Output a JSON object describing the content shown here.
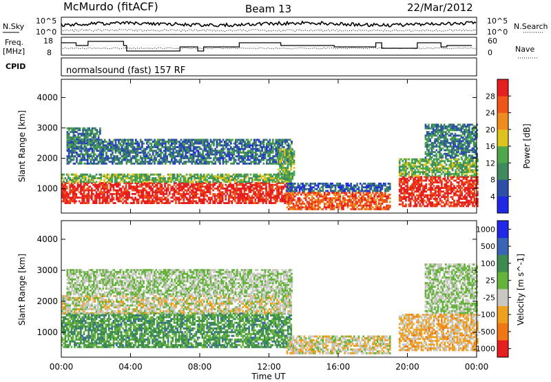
{
  "header": {
    "title": "McMurdo (fitACF)",
    "beam": "Beam 13",
    "date": "22/Mar/2012"
  },
  "noise_panel": {
    "left_label": "N.Sky",
    "right_label": "N.Search",
    "left_ticks": [
      "10^5",
      "10^0"
    ],
    "right_ticks": [
      "10^5",
      "10^0"
    ]
  },
  "freq_panel": {
    "left_label_1": "Freq.",
    "left_label_2": "[MHz]",
    "left_ticks": [
      "18",
      "8"
    ],
    "right_label": "Nave",
    "right_ticks": [
      "60",
      "0"
    ]
  },
  "cpid": {
    "label": "CPID",
    "value": "normalsound (fast) 157 RF"
  },
  "colors": {
    "power_scale": [
      "#1e28e6",
      "#2c4fa8",
      "#3d8a5c",
      "#4ca84a",
      "#e0c21c",
      "#f08c1e",
      "#ef5418",
      "#e61e1e"
    ],
    "velocity_scale": [
      "#1e28e6",
      "#3c64b4",
      "#3c8c50",
      "#64b43c",
      "#c8c8c0",
      "#f0a01e",
      "#f07814",
      "#e61e1e"
    ],
    "ground_scatter": "#b4b4b4"
  },
  "chart_data": [
    {
      "type": "heatmap",
      "name": "power",
      "ylabel": "Slant Range [km]",
      "xlabel": "",
      "x_ticks": [
        "00:00",
        "04:00",
        "08:00",
        "12:00",
        "16:00",
        "20:00",
        "00:00"
      ],
      "y_ticks": [
        "1000",
        "2000",
        "3000",
        "4000"
      ],
      "ylim": [
        200,
        4600
      ],
      "xlim": [
        0,
        24
      ],
      "colorbar_label": "Power [dB]",
      "colorbar_ticks": [
        "4",
        "8",
        "12",
        "16",
        "20",
        "24",
        "28"
      ],
      "color_range": [
        0,
        32
      ],
      "regions": [
        {
          "t0": 0.0,
          "t1": 13.3,
          "r0": 500,
          "r1": 1200,
          "value": 30
        },
        {
          "t0": 0.0,
          "t1": 13.3,
          "r0": 1200,
          "r1": 1500,
          "value": 14
        },
        {
          "t0": 0.3,
          "t1": 13.3,
          "r0": 1800,
          "r1": 2600,
          "value": 8
        },
        {
          "t0": 0.3,
          "t1": 2.2,
          "r0": 2300,
          "r1": 3000,
          "value": 10
        },
        {
          "t0": 12.5,
          "t1": 13.4,
          "r0": 1300,
          "r1": 2300,
          "value": 14
        },
        {
          "t0": 13.0,
          "t1": 19.0,
          "r0": 300,
          "r1": 900,
          "value": 26
        },
        {
          "t0": 13.0,
          "t1": 19.0,
          "r0": 900,
          "r1": 1200,
          "value": 6
        },
        {
          "t0": 19.5,
          "t1": 24.0,
          "r0": 400,
          "r1": 1400,
          "value": 30
        },
        {
          "t0": 19.5,
          "t1": 24.0,
          "r0": 1400,
          "r1": 2000,
          "value": 14
        },
        {
          "t0": 21.0,
          "t1": 24.0,
          "r0": 2000,
          "r1": 3100,
          "value": 9
        }
      ]
    },
    {
      "type": "heatmap",
      "name": "velocity",
      "ylabel": "Slant Range [km]",
      "xlabel": "Time UT",
      "x_ticks": [
        "00:00",
        "04:00",
        "08:00",
        "12:00",
        "16:00",
        "20:00",
        "00:00"
      ],
      "y_ticks": [
        "1000",
        "2000",
        "3000",
        "4000"
      ],
      "ylim": [
        200,
        4600
      ],
      "xlim": [
        0,
        24
      ],
      "colorbar_label": "Velocity [m s^-1]",
      "colorbar_ticks": [
        "1000",
        "500",
        "100",
        "25",
        "-25",
        "-100",
        "-500",
        "-1000"
      ],
      "color_range": [
        -1000,
        1000
      ],
      "regions": [
        {
          "t0": 0.0,
          "t1": 13.3,
          "r0": 500,
          "r1": 1600,
          "value": 300
        },
        {
          "t0": 0.0,
          "t1": 13.3,
          "r0": 1600,
          "r1": 2200,
          "value": -120
        },
        {
          "t0": 0.3,
          "t1": 13.3,
          "r0": 2200,
          "r1": 3000,
          "value": 0
        },
        {
          "t0": 13.0,
          "t1": 19.0,
          "r0": 300,
          "r1": 900,
          "value": -150
        },
        {
          "t0": 19.5,
          "t1": 24.0,
          "r0": 400,
          "r1": 1600,
          "value": -300
        },
        {
          "t0": 21.0,
          "t1": 24.0,
          "r0": 1600,
          "r1": 3200,
          "value": 0
        }
      ]
    }
  ]
}
